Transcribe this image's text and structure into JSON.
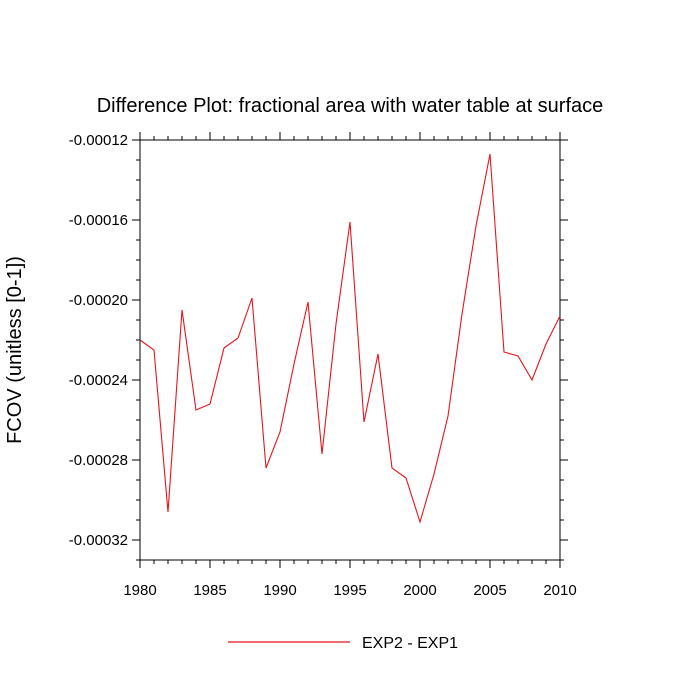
{
  "chart_data": {
    "type": "line",
    "title": "Difference Plot: fractional area with water table at surface",
    "ylabel": "FCOV  (unitless [0-1])",
    "xlabel": "",
    "xlim": [
      1980,
      2010
    ],
    "ylim": [
      -0.00033,
      -0.00012
    ],
    "x_ticks": [
      1980,
      1985,
      1990,
      1995,
      2000,
      2005,
      2010
    ],
    "x_tick_labels": [
      "1980",
      "1985",
      "1990",
      "1995",
      "2000",
      "2005",
      "2010"
    ],
    "y_ticks": [
      -0.00032,
      -0.00028,
      -0.00024,
      -0.0002,
      -0.00016,
      -0.00012
    ],
    "y_tick_labels": [
      "-0.00032",
      "-0.00028",
      "-0.00024",
      "-0.00020",
      "-0.00016",
      "-0.00012"
    ],
    "legend_position": "bottom-center",
    "series": [
      {
        "name": "EXP2 - EXP1",
        "color": "#e8141c",
        "x": [
          1980,
          1981,
          1982,
          1983,
          1984,
          1985,
          1986,
          1987,
          1988,
          1989,
          1990,
          1991,
          1992,
          1993,
          1994,
          1995,
          1996,
          1997,
          1998,
          1999,
          2000,
          2001,
          2002,
          2003,
          2004,
          2005,
          2006,
          2007,
          2008,
          2009,
          2010
        ],
        "values": [
          -0.00022,
          -0.000225,
          -0.000306,
          -0.000205,
          -0.000255,
          -0.000252,
          -0.000224,
          -0.000219,
          -0.000199,
          -0.000284,
          -0.000266,
          -0.000232,
          -0.000201,
          -0.000277,
          -0.000212,
          -0.000161,
          -0.000261,
          -0.000227,
          -0.000284,
          -0.000289,
          -0.000311,
          -0.000287,
          -0.000258,
          -0.000207,
          -0.000163,
          -0.000127,
          -0.000226,
          -0.000228,
          -0.00024,
          -0.000222,
          -0.000208
        ]
      }
    ]
  }
}
